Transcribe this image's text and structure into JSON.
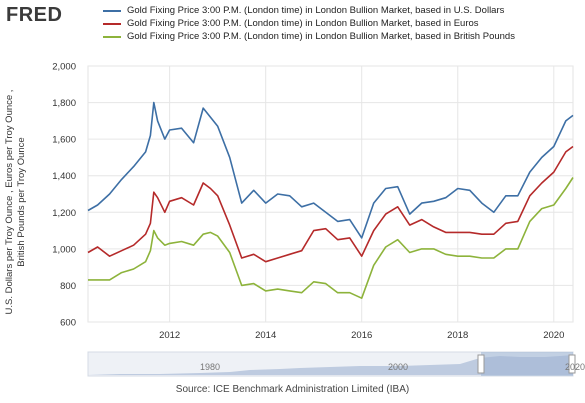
{
  "logo": "FRED",
  "legend": [
    {
      "label": "Gold Fixing Price 3:00 P.M. (London time) in London Bullion Market, based in U.S. Dollars",
      "color": "#3d6fa5"
    },
    {
      "label": "Gold Fixing Price 3:00 P.M. (London time) in London Bullion Market, based in Euros",
      "color": "#b52a2a"
    },
    {
      "label": "Gold Fixing Price 3:00 P.M. (London time) in London Bullion Market, based in British Pounds",
      "color": "#8db33b"
    }
  ],
  "ylabel": "U.S. Dollars per Troy Ounce , Euros per Troy Ounce , British Pounds per Troy Ounce",
  "source": "Source: ICE Benchmark Administration Limited (IBA)",
  "navigator": {
    "labels": [
      "1980",
      "2000",
      "2020"
    ]
  },
  "chart_data": {
    "type": "line",
    "xlim": [
      2010.3,
      2020.4
    ],
    "ylim": [
      600,
      2000
    ],
    "yticks": [
      600,
      800,
      1000,
      1200,
      1400,
      1600,
      1800,
      2000
    ],
    "ytick_labels": [
      "600",
      "800",
      "1,000",
      "1,200",
      "1,400",
      "1,600",
      "1,800",
      "2,000"
    ],
    "xticks": [
      2012,
      2014,
      2016,
      2018,
      2020
    ],
    "xtick_labels": [
      "2012",
      "2014",
      "2016",
      "2018",
      "2020"
    ],
    "grid": true,
    "legend_position": "top",
    "x": [
      2010.3,
      2010.5,
      2010.75,
      2011.0,
      2011.25,
      2011.5,
      2011.6,
      2011.67,
      2011.75,
      2011.9,
      2012.0,
      2012.25,
      2012.5,
      2012.7,
      2012.85,
      2013.0,
      2013.25,
      2013.5,
      2013.75,
      2014.0,
      2014.25,
      2014.5,
      2014.75,
      2015.0,
      2015.25,
      2015.5,
      2015.75,
      2016.0,
      2016.25,
      2016.5,
      2016.75,
      2017.0,
      2017.25,
      2017.5,
      2017.75,
      2018.0,
      2018.25,
      2018.5,
      2018.75,
      2019.0,
      2019.25,
      2019.5,
      2019.75,
      2020.0,
      2020.25,
      2020.4
    ],
    "series": [
      {
        "name": "Gold Fixing Price 3:00 P.M. (London time) in London Bullion Market, based in U.S. Dollars",
        "color": "#3d6fa5",
        "values": [
          1210,
          1240,
          1300,
          1380,
          1450,
          1530,
          1620,
          1800,
          1700,
          1600,
          1650,
          1660,
          1580,
          1770,
          1720,
          1670,
          1500,
          1250,
          1320,
          1250,
          1300,
          1290,
          1230,
          1250,
          1200,
          1150,
          1160,
          1060,
          1250,
          1330,
          1340,
          1190,
          1250,
          1260,
          1280,
          1330,
          1320,
          1250,
          1200,
          1290,
          1290,
          1420,
          1500,
          1560,
          1700,
          1730
        ]
      },
      {
        "name": "Gold Fixing Price 3:00 P.M. (London time) in London Bullion Market, based in Euros",
        "color": "#b52a2a",
        "values": [
          980,
          1010,
          960,
          990,
          1020,
          1080,
          1140,
          1310,
          1280,
          1200,
          1260,
          1280,
          1240,
          1360,
          1330,
          1290,
          1130,
          950,
          970,
          930,
          950,
          970,
          990,
          1100,
          1110,
          1050,
          1060,
          960,
          1100,
          1190,
          1230,
          1130,
          1160,
          1120,
          1090,
          1090,
          1090,
          1080,
          1080,
          1140,
          1150,
          1290,
          1360,
          1420,
          1530,
          1560
        ]
      },
      {
        "name": "Gold Fixing Price 3:00 P.M. (London time) in London Bullion Market, based in British Pounds",
        "color": "#8db33b",
        "values": [
          830,
          830,
          830,
          870,
          890,
          930,
          990,
          1100,
          1060,
          1020,
          1030,
          1040,
          1020,
          1080,
          1090,
          1070,
          980,
          800,
          810,
          770,
          780,
          770,
          760,
          820,
          810,
          760,
          760,
          730,
          910,
          1010,
          1050,
          980,
          1000,
          1000,
          970,
          960,
          960,
          950,
          950,
          1000,
          1000,
          1150,
          1220,
          1240,
          1330,
          1390
        ]
      }
    ]
  }
}
